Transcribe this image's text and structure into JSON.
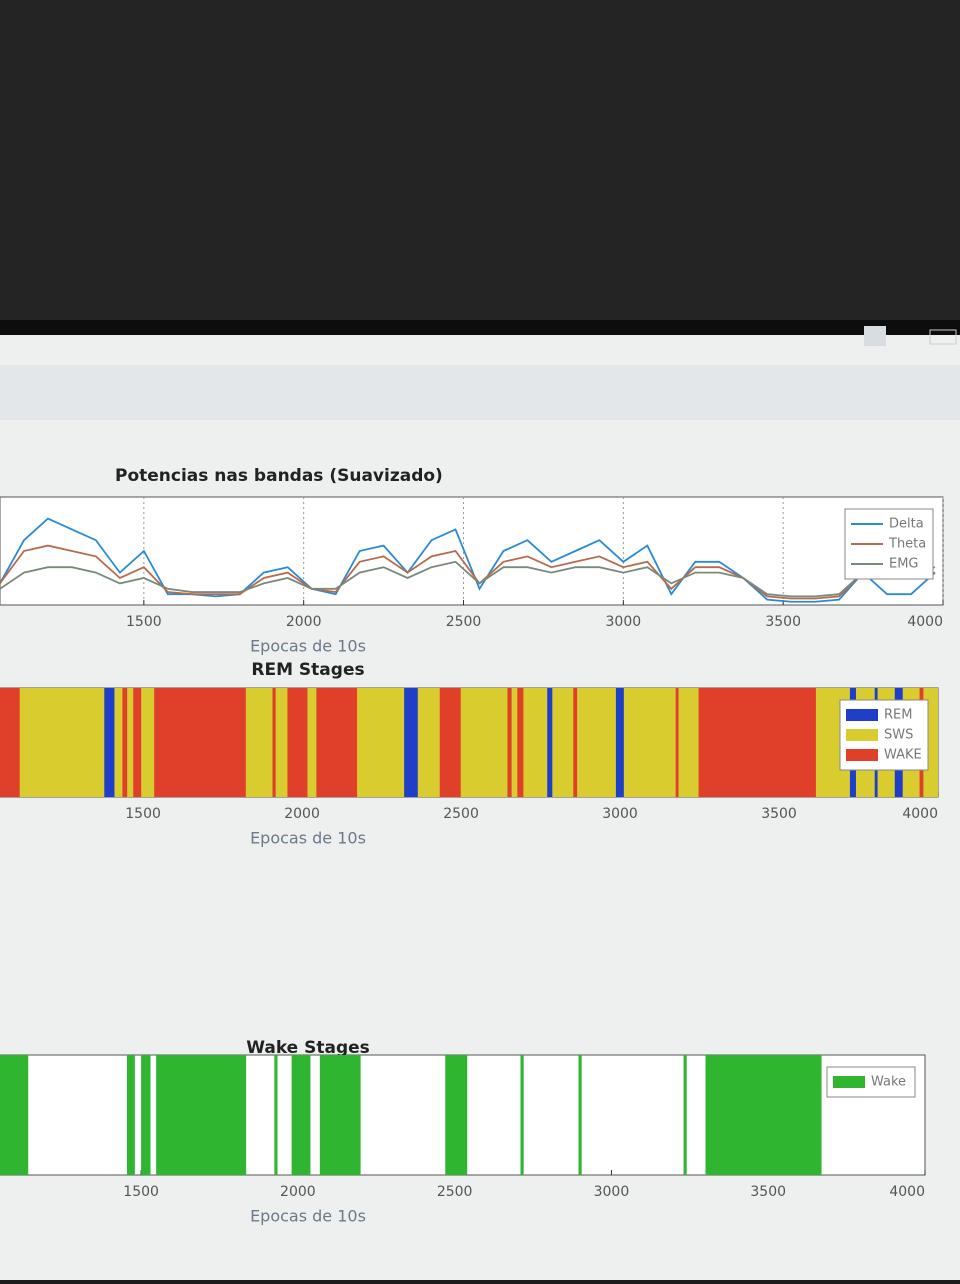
{
  "chart_data": [
    {
      "type": "line",
      "title": "Potencias nas bandas (Suavizado)",
      "xlabel": "Epocas de 10s",
      "xlim": [
        1050,
        4000
      ],
      "xticks": [
        1500,
        2000,
        2500,
        3000,
        3500,
        4000
      ],
      "ylim": [
        0,
        10
      ],
      "grid": true,
      "legend": "upper right",
      "x": [
        1050,
        1125,
        1200,
        1275,
        1350,
        1425,
        1500,
        1575,
        1650,
        1725,
        1800,
        1875,
        1950,
        2025,
        2100,
        2175,
        2250,
        2325,
        2400,
        2475,
        2550,
        2625,
        2700,
        2775,
        2850,
        2925,
        3000,
        3075,
        3150,
        3225,
        3300,
        3375,
        3450,
        3525,
        3600,
        3675,
        3750,
        3825,
        3900,
        3975
      ],
      "series": [
        {
          "name": "Delta",
          "color": "#2a8ad8",
          "values": [
            2,
            6,
            8,
            7,
            6,
            3,
            5,
            1,
            1,
            0.8,
            1,
            3,
            3.5,
            1.5,
            1,
            5,
            5.5,
            3,
            6,
            7,
            1.5,
            5,
            6,
            4,
            5,
            6,
            4,
            5.5,
            1,
            4,
            4,
            2.5,
            0.5,
            0.3,
            0.3,
            0.5,
            3,
            1,
            1,
            3
          ]
        },
        {
          "name": "Theta",
          "color": "#b86a4a",
          "values": [
            2,
            5,
            5.5,
            5,
            4.5,
            2.5,
            3.5,
            1.2,
            1,
            1,
            1,
            2.5,
            3,
            1.5,
            1.2,
            4,
            4.5,
            3,
            4.5,
            5,
            2,
            4,
            4.5,
            3.5,
            4,
            4.5,
            3.5,
            4,
            1.5,
            3.5,
            3.5,
            2.5,
            0.8,
            0.6,
            0.6,
            0.8,
            3,
            2.5,
            2.5,
            3
          ]
        },
        {
          "name": "EMG",
          "color": "#7a8a7a",
          "values": [
            1.5,
            3,
            3.5,
            3.5,
            3,
            2,
            2.5,
            1.5,
            1.2,
            1.2,
            1.2,
            2,
            2.5,
            1.5,
            1.5,
            3,
            3.5,
            2.5,
            3.5,
            4,
            2,
            3.5,
            3.5,
            3,
            3.5,
            3.5,
            3,
            3.5,
            2,
            3,
            3,
            2.5,
            1,
            0.8,
            0.8,
            1,
            3,
            3,
            3,
            3.5
          ]
        }
      ]
    },
    {
      "type": "interval",
      "title": "REM Stages",
      "xlabel": "Epocas de 10s",
      "xlim": [
        1050,
        4000
      ],
      "xticks": [
        1500,
        2000,
        2500,
        3000,
        3500,
        4000
      ],
      "legend": "upper right",
      "series": [
        {
          "name": "REM",
          "color": "#1f3fc8",
          "intervals": [
            [
              1378,
              1410
            ],
            [
              2321,
              2364
            ],
            [
              2771,
              2787
            ],
            [
              2987,
              3012
            ],
            [
              3723,
              3742
            ],
            [
              3801,
              3810
            ],
            [
              3864,
              3889
            ]
          ]
        },
        {
          "name": "SWS",
          "color": "#d8cc2e",
          "intervals": [
            [
              1050,
              4000
            ]
          ]
        },
        {
          "name": "WAKE",
          "color": "#e0402a",
          "intervals": [
            [
              1050,
              1112
            ],
            [
              1435,
              1450
            ],
            [
              1469,
              1494
            ],
            [
              1535,
              1823
            ],
            [
              1907,
              1917
            ],
            [
              1954,
              2017
            ],
            [
              2045,
              2173
            ],
            [
              2433,
              2499
            ],
            [
              2646,
              2659
            ],
            [
              2677,
              2696
            ],
            [
              2853,
              2865
            ],
            [
              3175,
              3184
            ],
            [
              3247,
              3616
            ],
            [
              3942,
              3954
            ]
          ]
        }
      ]
    },
    {
      "type": "interval",
      "title": "Wake Stages",
      "xlabel": "Epocas de 10s",
      "xlim": [
        1050,
        4000
      ],
      "xticks": [
        1500,
        2000,
        2500,
        3000,
        3500,
        4000
      ],
      "legend": "upper right",
      "series": [
        {
          "name": "Wake",
          "color": "#2fb52f",
          "intervals": [
            [
              1050,
              1140
            ],
            [
              1455,
              1480
            ],
            [
              1500,
              1530
            ],
            [
              1548,
              1835
            ],
            [
              1925,
              1935
            ],
            [
              1980,
              2040
            ],
            [
              2070,
              2200
            ],
            [
              2470,
              2540
            ],
            [
              2710,
              2720
            ],
            [
              2895,
              2905
            ],
            [
              3230,
              3240
            ],
            [
              3300,
              3670
            ]
          ]
        }
      ]
    }
  ]
}
